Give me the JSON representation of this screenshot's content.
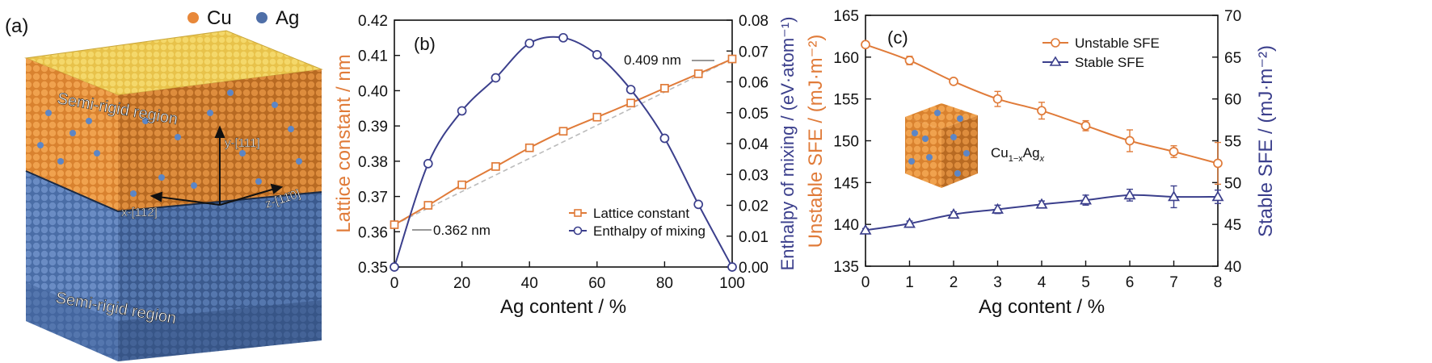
{
  "colors": {
    "cu": "#E8883A",
    "ag": "#4F6FA8",
    "orange_axis": "#E07B39",
    "navy_axis": "#3B3F8C",
    "dashed": "#BBBBBB",
    "dark_orange": "#C46A22",
    "dark_blue": "#3A5A90"
  },
  "panel_a": {
    "label": "(a)",
    "legend": [
      {
        "name": "Cu",
        "color": "#E8883A"
      },
      {
        "name": "Ag",
        "color": "#4F6FA8"
      }
    ],
    "regions": {
      "top": "Semi-rigid region",
      "bottom": "Semi-rigid region"
    },
    "axes": {
      "y": "y-[111]",
      "x": "x-[112̄]",
      "z": "z-[11̄0]"
    }
  },
  "chart_data": [
    {
      "type": "line",
      "panel_label": "(b)",
      "xlabel": "Ag content / %",
      "ylabel_left": "Lattice constant / nm",
      "ylabel_right": "Enthalpy of mixing / (eV·atom⁻¹)",
      "xlim": [
        0,
        100
      ],
      "ylim_left": [
        0.35,
        0.42
      ],
      "ylim_right": [
        0.0,
        0.08
      ],
      "x_ticks": [
        "0",
        "20",
        "40",
        "60",
        "80",
        "100"
      ],
      "y_ticks_left": [
        "0.35",
        "0.36",
        "0.37",
        "0.38",
        "0.39",
        "0.40",
        "0.41",
        "0.42"
      ],
      "y_ticks_right": [
        "0.00",
        "0.01",
        "0.02",
        "0.03",
        "0.04",
        "0.05",
        "0.06",
        "0.07",
        "0.08"
      ],
      "series": [
        {
          "name": "Lattice constant",
          "axis": "left",
          "marker": "square",
          "x": [
            0,
            10,
            20,
            30,
            40,
            50,
            60,
            70,
            80,
            90,
            100
          ],
          "values": [
            0.362,
            0.3675,
            0.3733,
            0.3785,
            0.3838,
            0.3885,
            0.3925,
            0.3965,
            0.4007,
            0.4048,
            0.409
          ]
        },
        {
          "name": "Enthalpy of mixing",
          "axis": "right",
          "marker": "circle",
          "x": [
            0,
            10,
            20,
            30,
            40,
            50,
            60,
            70,
            80,
            90,
            100
          ],
          "values": [
            0.0,
            0.0335,
            0.0506,
            0.0613,
            0.0725,
            0.0743,
            0.0688,
            0.0575,
            0.0417,
            0.0203,
            0.0
          ]
        }
      ],
      "reference_line": {
        "x": [
          0,
          100
        ],
        "values": [
          0.362,
          0.409
        ],
        "style": "dashed"
      },
      "annotations": [
        {
          "text": "0.409 nm",
          "x": 100,
          "value": 0.409
        },
        {
          "text": "0.362 nm",
          "x": 0,
          "value": 0.362
        }
      ],
      "legend_position": "bottom-right"
    },
    {
      "type": "line",
      "panel_label": "(c)",
      "xlabel": "Ag content / %",
      "ylabel_left": "Unstable SFE / (mJ·m⁻²)",
      "ylabel_right": "Stable SFE / (mJ·m⁻²)",
      "xlim": [
        0,
        8
      ],
      "ylim_left": [
        135,
        165
      ],
      "ylim_right": [
        40,
        70
      ],
      "x_ticks": [
        "0",
        "1",
        "2",
        "3",
        "4",
        "5",
        "6",
        "7",
        "8"
      ],
      "y_ticks_left": [
        "135",
        "140",
        "145",
        "150",
        "155",
        "160",
        "165"
      ],
      "y_ticks_right": [
        "40",
        "45",
        "50",
        "55",
        "60",
        "65",
        "70"
      ],
      "series": [
        {
          "name": "Unstable SFE",
          "axis": "left",
          "marker": "circle",
          "x": [
            0,
            1,
            2,
            3,
            4,
            5,
            6,
            7,
            8
          ],
          "values": [
            161.5,
            159.6,
            157.1,
            155.0,
            153.6,
            151.8,
            150.0,
            148.7,
            147.3
          ],
          "errors": [
            0.3,
            0.5,
            0.3,
            0.9,
            1.0,
            0.6,
            1.3,
            0.7,
            2.5
          ]
        },
        {
          "name": "Stable SFE",
          "axis": "right",
          "marker": "triangle",
          "x": [
            0,
            1,
            2,
            3,
            4,
            5,
            6,
            7,
            8
          ],
          "values": [
            44.3,
            45.1,
            46.2,
            46.8,
            47.4,
            47.9,
            48.5,
            48.3,
            48.3
          ],
          "errors": [
            0.2,
            0.3,
            0.3,
            0.5,
            0.4,
            0.6,
            0.7,
            1.3,
            0.8
          ]
        }
      ],
      "inset_label_parts": {
        "base": "Cu",
        "sub1": "1−x",
        "mid": "Ag",
        "sub2": "x"
      },
      "legend_position": "top-right"
    }
  ]
}
